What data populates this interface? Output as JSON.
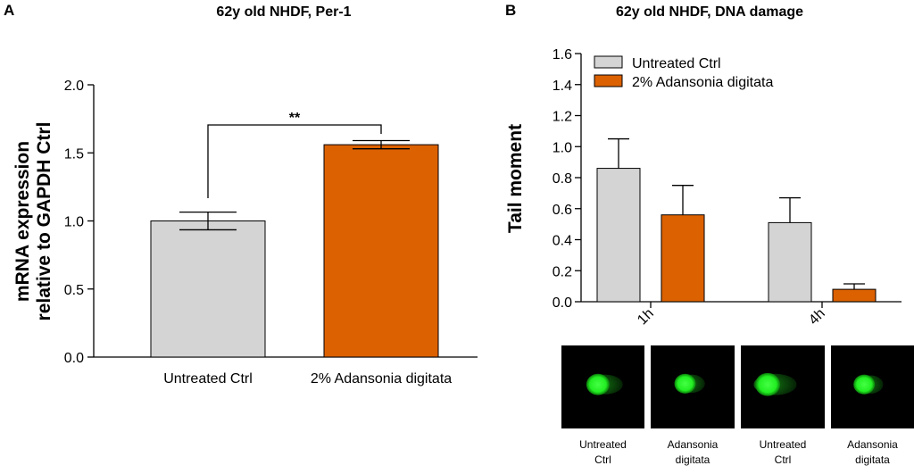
{
  "panels": {
    "a": {
      "letter": "A"
    },
    "b": {
      "letter": "B"
    }
  },
  "colors": {
    "untreated": "#d4d4d4",
    "treated": "#dc6100",
    "cell_bg": "#000000",
    "cell": "#22ee22"
  },
  "chart_data": [
    {
      "type": "bar",
      "title": "62y old NHDF, Per-1",
      "ylabel_line1": "mRNA expression",
      "ylabel_line2": "relative to GAPDH Ctrl",
      "xlabel": "",
      "categories": [
        "Untreated Ctrl",
        "2% Adansonia digitata"
      ],
      "values": [
        1.0,
        1.56
      ],
      "errors": [
        0.065,
        0.03
      ],
      "ylim": [
        0,
        2.0
      ],
      "yticks": [
        "0.0",
        "0.5",
        "1.0",
        "1.5",
        "2.0"
      ],
      "significance": "**"
    },
    {
      "type": "bar",
      "title": "62y old NHDF, DNA damage",
      "ylabel": "Tail moment",
      "xlabel": "",
      "categories": [
        "1h",
        "4h"
      ],
      "series": [
        {
          "name": "Untreated Ctrl",
          "values": [
            0.86,
            0.51
          ],
          "errors": [
            0.19,
            0.16
          ]
        },
        {
          "name": "2% Adansonia digitata",
          "values": [
            0.56,
            0.08
          ],
          "errors": [
            0.19,
            0.035
          ]
        }
      ],
      "ylim": [
        0,
        1.6
      ],
      "yticks": [
        "0.0",
        "0.2",
        "0.4",
        "0.6",
        "0.8",
        "1.0",
        "1.2",
        "1.4",
        "1.6"
      ],
      "legend_position": "top-left"
    }
  ],
  "comet_images": [
    {
      "line1": "Untreated",
      "line2": "Ctrl"
    },
    {
      "line1": "Adansonia",
      "line2": "digitata"
    },
    {
      "line1": "Untreated",
      "line2": "Ctrl"
    },
    {
      "line1": "Adansonia",
      "line2": "digitata"
    }
  ]
}
